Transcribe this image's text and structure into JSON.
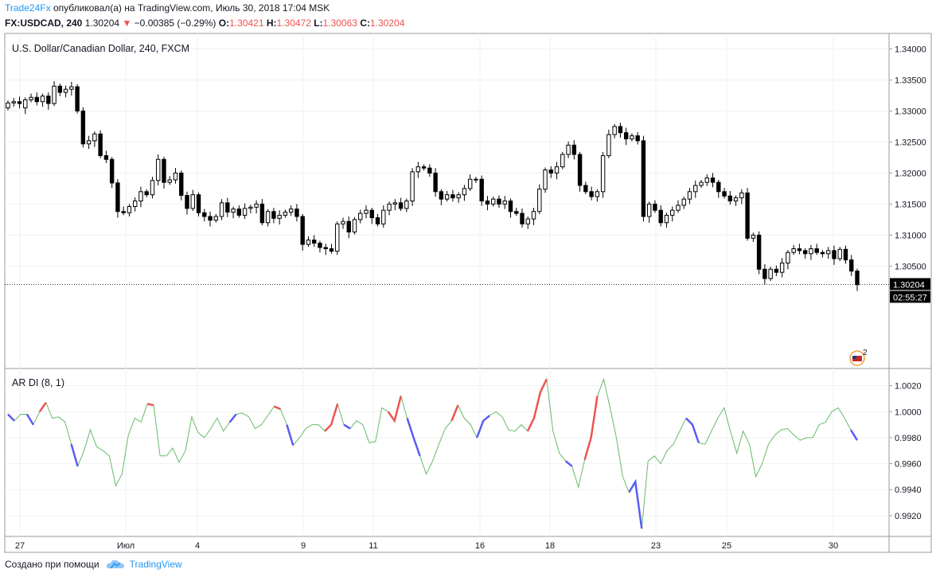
{
  "header": {
    "author": "Trade24Fx",
    "published": "опубликовал(а) на TradingView.com, Июль 30, 2018 17:04 MSK"
  },
  "ticker": {
    "symbol": "FX:USDCAD, 240",
    "last": "1.30204",
    "arrow": "▼",
    "change": "−0.00385 (−0.29%)",
    "o_label": "O:",
    "o_value": "1.30421",
    "h_label": "H:",
    "h_value": "1.30472",
    "l_label": "L:",
    "l_value": "1.30063",
    "c_label": "C:",
    "c_value": "1.30204"
  },
  "footer": {
    "created": "Создано при помощи",
    "brand": "TradingView"
  },
  "colors": {
    "up": "#ef5350",
    "down": "#5b5cf5",
    "neutral": "#66bb6a",
    "accent": "#2196f3"
  },
  "chart_data": [
    {
      "type": "candlestick",
      "title": "U.S. Dollar/Canadian Dollar, 240, FXCM",
      "ylim": [
        1.2885,
        1.3425
      ],
      "y_ticks": [
        "1.34000",
        "1.33500",
        "1.33000",
        "1.32500",
        "1.32000",
        "1.31500",
        "1.31000",
        "1.30500"
      ],
      "x_ticks": [
        "27",
        "Июл",
        "4",
        "9",
        "11",
        "16",
        "18",
        "23",
        "25",
        "30"
      ],
      "price_line": 1.30204,
      "price_label": "1.30204",
      "countdown": "02:55:27",
      "event_count": "2",
      "close": [
        1.3313,
        1.3315,
        1.3312,
        1.3318,
        1.3322,
        1.3315,
        1.3324,
        1.3312,
        1.334,
        1.333,
        1.3335,
        1.3339,
        1.33,
        1.3247,
        1.3252,
        1.3263,
        1.3228,
        1.3222,
        1.3184,
        1.3138,
        1.3136,
        1.3146,
        1.3155,
        1.317,
        1.3165,
        1.3188,
        1.3222,
        1.3185,
        1.3189,
        1.32,
        1.3164,
        1.3143,
        1.3165,
        1.3136,
        1.313,
        1.3124,
        1.313,
        1.3152,
        1.3137,
        1.3142,
        1.3132,
        1.3143,
        1.3145,
        1.315,
        1.312,
        1.3138,
        1.3127,
        1.3132,
        1.3137,
        1.3142,
        1.313,
        1.3085,
        1.3092,
        1.3087,
        1.308,
        1.3078,
        1.3074,
        1.3118,
        1.3122,
        1.3105,
        1.3125,
        1.3135,
        1.314,
        1.3128,
        1.3118,
        1.314,
        1.315,
        1.3152,
        1.3143,
        1.3155,
        1.3202,
        1.321,
        1.3208,
        1.32,
        1.317,
        1.3158,
        1.3165,
        1.316,
        1.3165,
        1.3175,
        1.319,
        1.319,
        1.3155,
        1.315,
        1.3158,
        1.315,
        1.3155,
        1.3138,
        1.3135,
        1.3118,
        1.3126,
        1.3138,
        1.3174,
        1.3205,
        1.32,
        1.321,
        1.323,
        1.3245,
        1.323,
        1.318,
        1.317,
        1.3162,
        1.317,
        1.3228,
        1.3262,
        1.3275,
        1.3265,
        1.3255,
        1.326,
        1.3252,
        1.313,
        1.315,
        1.314,
        1.312,
        1.3132,
        1.314,
        1.3148,
        1.3158,
        1.317,
        1.318,
        1.3185,
        1.3192,
        1.3185,
        1.317,
        1.3163,
        1.3155,
        1.316,
        1.3168,
        1.3095,
        1.31,
        1.3045,
        1.303,
        1.3045,
        1.304,
        1.3055,
        1.3072,
        1.3078,
        1.3075,
        1.307,
        1.3078,
        1.3072,
        1.307,
        1.3075,
        1.3062,
        1.3077,
        1.306,
        1.3042,
        1.302
      ],
      "open": [
        1.3305,
        1.3313,
        1.3315,
        1.3305,
        1.3318,
        1.3322,
        1.3315,
        1.3324,
        1.3312,
        1.334,
        1.333,
        1.3335,
        1.3339,
        1.33,
        1.3247,
        1.3252,
        1.3263,
        1.3228,
        1.3222,
        1.3184,
        1.3138,
        1.3136,
        1.3146,
        1.3155,
        1.317,
        1.3165,
        1.3188,
        1.3222,
        1.3185,
        1.3189,
        1.32,
        1.3164,
        1.3143,
        1.3165,
        1.3136,
        1.313,
        1.3124,
        1.313,
        1.3152,
        1.3137,
        1.3142,
        1.3132,
        1.3143,
        1.3145,
        1.315,
        1.312,
        1.3138,
        1.3127,
        1.3132,
        1.3137,
        1.3142,
        1.313,
        1.3085,
        1.3092,
        1.3087,
        1.308,
        1.3078,
        1.3074,
        1.3118,
        1.3122,
        1.3105,
        1.3125,
        1.3135,
        1.314,
        1.3128,
        1.3118,
        1.314,
        1.315,
        1.3152,
        1.3143,
        1.3155,
        1.3202,
        1.321,
        1.3208,
        1.32,
        1.317,
        1.3158,
        1.3165,
        1.316,
        1.3165,
        1.3175,
        1.319,
        1.319,
        1.3155,
        1.315,
        1.3158,
        1.315,
        1.3155,
        1.3138,
        1.3135,
        1.3118,
        1.3126,
        1.3138,
        1.3174,
        1.3205,
        1.32,
        1.321,
        1.323,
        1.3245,
        1.323,
        1.318,
        1.317,
        1.3162,
        1.317,
        1.3228,
        1.3262,
        1.3275,
        1.3265,
        1.3255,
        1.326,
        1.3252,
        1.313,
        1.315,
        1.314,
        1.312,
        1.3132,
        1.314,
        1.3148,
        1.3158,
        1.317,
        1.318,
        1.3185,
        1.3192,
        1.3185,
        1.317,
        1.3163,
        1.3155,
        1.316,
        1.3168,
        1.3095,
        1.31,
        1.3045,
        1.303,
        1.3045,
        1.304,
        1.3055,
        1.3072,
        1.3078,
        1.3075,
        1.307,
        1.3078,
        1.3072,
        1.307,
        1.3075,
        1.3062,
        1.3077,
        1.306,
        1.3042
      ]
    },
    {
      "type": "line",
      "title": "AR DI (8, 1)",
      "ylim": [
        0.9904,
        1.0032
      ],
      "y_ticks": [
        "1.0020",
        "1.0000",
        "0.9980",
        "0.9960",
        "0.9940",
        "0.9920"
      ],
      "values": [
        0.9998,
        0.9993,
        0.9998,
        0.9998,
        0.999,
        1.0,
        1.0007,
        0.9995,
        0.9996,
        0.9992,
        0.9975,
        0.9958,
        0.997,
        0.9986,
        0.9973,
        0.997,
        0.9966,
        0.9943,
        0.9952,
        0.9982,
        0.9995,
        0.9992,
        1.0006,
        1.0005,
        0.9966,
        0.9966,
        0.9972,
        0.9961,
        0.997,
        0.9996,
        0.9984,
        0.998,
        0.9987,
        0.9995,
        0.9985,
        0.9992,
        0.9998,
        0.9999,
        0.9996,
        0.9987,
        0.999,
        0.9997,
        1.0004,
        1.0002,
        0.999,
        0.9974,
        0.998,
        0.9987,
        0.999,
        0.999,
        0.9985,
        0.999,
        1.0006,
        0.999,
        0.9987,
        0.9993,
        0.999,
        0.9976,
        0.9977,
        1.0003,
        1.0,
        0.9993,
        1.0012,
        0.9995,
        0.998,
        0.9966,
        0.9952,
        0.9962,
        0.9975,
        0.9987,
        0.9993,
        1.0005,
        0.9995,
        0.999,
        0.998,
        0.9993,
        0.9997,
        1.0,
        0.9996,
        0.9986,
        0.9985,
        0.999,
        0.9985,
        0.9995,
        1.0015,
        1.0025,
        0.9985,
        0.9968,
        0.9962,
        0.9958,
        0.9942,
        0.9963,
        0.998,
        1.0012,
        1.0025,
        1.0003,
        0.998,
        0.995,
        0.9938,
        0.9946,
        0.991,
        0.9962,
        0.9966,
        0.996,
        0.997,
        0.9975,
        0.9985,
        0.9995,
        0.999,
        0.9976,
        0.9975,
        0.9985,
        0.9995,
        1.0003,
        0.9985,
        0.9968,
        0.9985,
        0.9975,
        0.995,
        0.996,
        0.9975,
        0.9982,
        0.9986,
        0.9987,
        0.9982,
        0.9978,
        0.998,
        0.998,
        0.999,
        0.9992,
        1.0,
        1.0003,
        0.9995,
        0.9986,
        0.9978
      ],
      "colored_segments": {
        "up": [
          [
            5,
            6
          ],
          [
            22,
            23
          ],
          [
            42,
            43
          ],
          [
            50,
            52
          ],
          [
            60,
            62
          ],
          [
            70,
            71
          ],
          [
            82,
            85
          ],
          [
            91,
            93
          ]
        ],
        "down": [
          [
            0,
            1
          ],
          [
            3,
            4
          ],
          [
            10,
            11
          ],
          [
            35,
            36
          ],
          [
            44,
            45
          ],
          [
            53,
            54
          ],
          [
            63,
            65
          ],
          [
            74,
            76
          ],
          [
            88,
            89
          ],
          [
            98,
            100
          ],
          [
            107,
            109
          ],
          [
            133,
            135
          ]
        ]
      }
    }
  ]
}
